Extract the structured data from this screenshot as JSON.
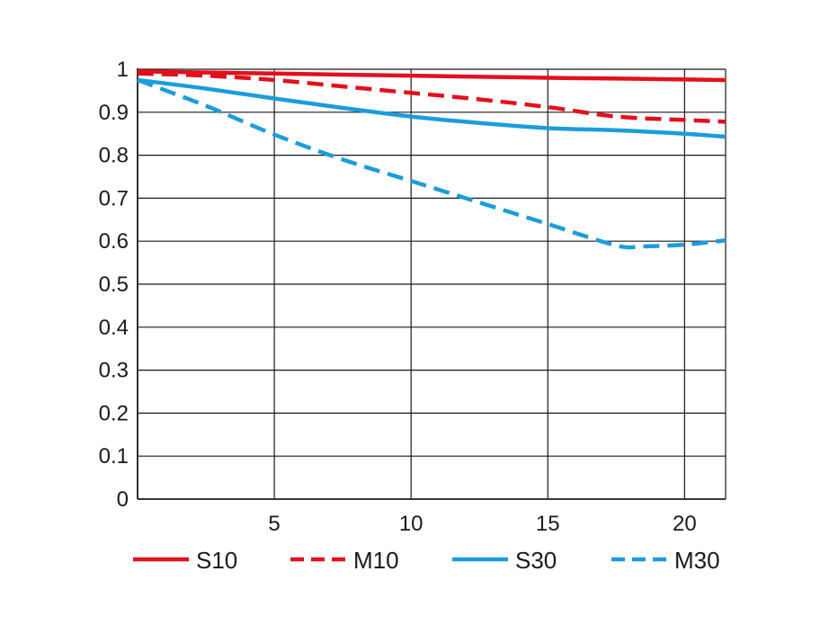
{
  "chart_data": {
    "type": "line",
    "title": "",
    "xlabel": "",
    "ylabel": "",
    "xlim": [
      0,
      21.5
    ],
    "ylim": [
      0,
      1
    ],
    "x_ticks": [
      5,
      10,
      15,
      20
    ],
    "x_tick_labels": [
      "5",
      "10",
      "15",
      "20"
    ],
    "y_ticks": [
      0,
      0.1,
      0.2,
      0.3,
      0.4,
      0.5,
      0.6,
      0.7,
      0.8,
      0.9,
      1
    ],
    "y_tick_labels": [
      "0",
      "0.1",
      "0.2",
      "0.3",
      "0.4",
      "0.5",
      "0.6",
      "0.7",
      "0.8",
      "0.9",
      "1"
    ],
    "grid": true,
    "legend_position": "bottom",
    "series": [
      {
        "name": "S10",
        "color": "#e3101c",
        "dash": "solid",
        "x": [
          0,
          5,
          10,
          15,
          18,
          21.5
        ],
        "y": [
          0.995,
          0.99,
          0.985,
          0.98,
          0.978,
          0.975
        ]
      },
      {
        "name": "M10",
        "color": "#e3101c",
        "dash": "dashed",
        "x": [
          0,
          2.5,
          5,
          7.5,
          10,
          12.5,
          15,
          17.5,
          20,
          21.5
        ],
        "y": [
          0.99,
          0.985,
          0.975,
          0.96,
          0.945,
          0.93,
          0.912,
          0.89,
          0.882,
          0.878
        ]
      },
      {
        "name": "S30",
        "color": "#1b9ddc",
        "dash": "solid",
        "x": [
          0,
          2.5,
          5,
          7.5,
          10,
          12.5,
          15,
          17.5,
          20,
          21.5
        ],
        "y": [
          0.975,
          0.955,
          0.932,
          0.91,
          0.89,
          0.875,
          0.863,
          0.858,
          0.85,
          0.843
        ]
      },
      {
        "name": "M30",
        "color": "#1b9ddc",
        "dash": "dashed",
        "x": [
          0,
          2.5,
          5,
          7.5,
          10,
          12.5,
          15,
          17.5,
          18.5,
          20,
          21.5
        ],
        "y": [
          0.975,
          0.915,
          0.848,
          0.79,
          0.74,
          0.69,
          0.64,
          0.59,
          0.588,
          0.592,
          0.602
        ]
      }
    ]
  }
}
